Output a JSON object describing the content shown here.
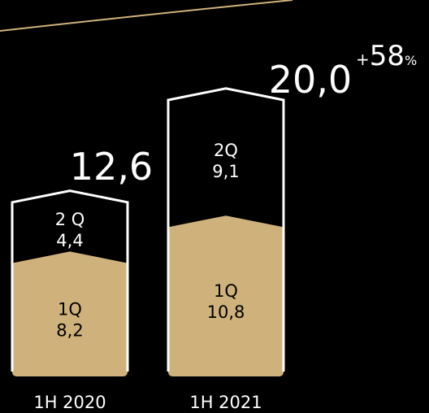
{
  "colors": {
    "background": "#000000",
    "q1_fill": "#cfb27b",
    "outline": "#ffffff",
    "text_light": "#ffffff",
    "text_dark": "#000000",
    "accent_line": "#cfb27b"
  },
  "chart_data": {
    "type": "bar",
    "stacked": true,
    "categories": [
      "1H 2020",
      "1H 2021"
    ],
    "series": [
      {
        "name": "1Q",
        "values": [
          8.2,
          10.8
        ],
        "labels": [
          "8,2",
          "10,8"
        ]
      },
      {
        "name": "2 Q",
        "values": [
          4.4,
          9.1
        ],
        "labels": [
          "4,4",
          "9,1"
        ]
      }
    ],
    "series_tags": [
      "1Q",
      "2Q"
    ],
    "series_tags_2020": [
      "1Q",
      "2 Q"
    ],
    "totals": [
      12.6,
      20.0
    ],
    "total_labels": [
      "12,6",
      "20,0"
    ],
    "growth_label": "+58",
    "growth_sign": "+",
    "growth_value": "58",
    "growth_unit": "%",
    "ylim": [
      0,
      22
    ]
  }
}
